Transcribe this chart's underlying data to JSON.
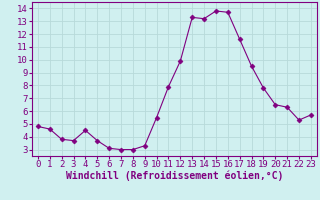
{
  "x": [
    0,
    1,
    2,
    3,
    4,
    5,
    6,
    7,
    8,
    9,
    10,
    11,
    12,
    13,
    14,
    15,
    16,
    17,
    18,
    19,
    20,
    21,
    22,
    23
  ],
  "y": [
    4.8,
    4.6,
    3.8,
    3.7,
    4.5,
    3.7,
    3.1,
    3.0,
    3.0,
    3.3,
    5.5,
    7.9,
    9.9,
    13.3,
    13.2,
    13.8,
    13.7,
    11.6,
    9.5,
    7.8,
    6.5,
    6.3,
    5.3,
    5.7
  ],
  "line_color": "#800080",
  "marker": "D",
  "marker_size": 2.5,
  "bg_color": "#d0f0f0",
  "grid_color": "#b8dada",
  "axis_color": "#800080",
  "xlabel": "Windchill (Refroidissement éolien,°C)",
  "xlabel_fontsize": 7,
  "tick_fontsize": 6.5,
  "ylim": [
    2.5,
    14.5
  ],
  "xlim": [
    -0.5,
    23.5
  ],
  "yticks": [
    3,
    4,
    5,
    6,
    7,
    8,
    9,
    10,
    11,
    12,
    13,
    14
  ],
  "xticks": [
    0,
    1,
    2,
    3,
    4,
    5,
    6,
    7,
    8,
    9,
    10,
    11,
    12,
    13,
    14,
    15,
    16,
    17,
    18,
    19,
    20,
    21,
    22,
    23
  ]
}
